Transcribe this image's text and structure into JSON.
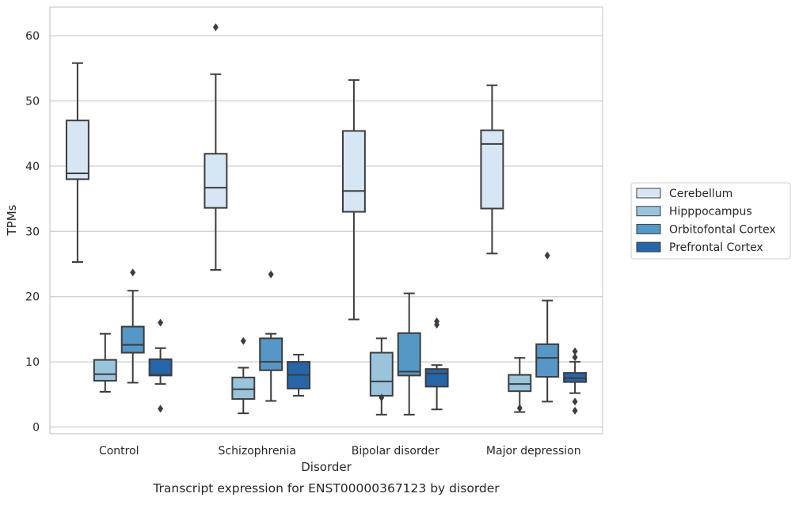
{
  "caption": "Transcript expression for ENST00000367123 by disorder",
  "chart_data": {
    "type": "boxplot",
    "title": "",
    "xlabel": "Disorder",
    "ylabel": "TPMs",
    "ylim": [
      -1,
      64.5
    ],
    "yticks": [
      0,
      10,
      20,
      30,
      40,
      50,
      60
    ],
    "grid": "horizontal",
    "legend_position": "right",
    "categories": [
      "Control",
      "Schizophrenia",
      "Bipolar disorder",
      "Major depression"
    ],
    "series": [
      {
        "name": "Cerebellum",
        "color": "#d7e6f4",
        "boxes": [
          {
            "whislo": 25.3,
            "q1": 38.0,
            "med": 38.9,
            "q3": 47.0,
            "whishi": 55.8,
            "fliers": []
          },
          {
            "whislo": 24.1,
            "q1": 33.6,
            "med": 36.7,
            "q3": 41.9,
            "whishi": 54.1,
            "fliers": [
              61.3
            ]
          },
          {
            "whislo": 16.5,
            "q1": 33.0,
            "med": 36.2,
            "q3": 45.4,
            "whishi": 53.2,
            "fliers": []
          },
          {
            "whislo": 26.6,
            "q1": 33.5,
            "med": 43.4,
            "q3": 45.5,
            "whishi": 52.4,
            "fliers": []
          }
        ]
      },
      {
        "name": "Hipppocampus",
        "color": "#9ac3dc",
        "boxes": [
          {
            "whislo": 5.4,
            "q1": 7.1,
            "med": 8.1,
            "q3": 10.3,
            "whishi": 14.3,
            "fliers": []
          },
          {
            "whislo": 2.1,
            "q1": 4.3,
            "med": 5.8,
            "q3": 7.6,
            "whishi": 9.1,
            "fliers": [
              13.2
            ]
          },
          {
            "whislo": 1.9,
            "q1": 4.8,
            "med": 7.0,
            "q3": 11.4,
            "whishi": 13.6,
            "fliers": [
              4.5
            ]
          },
          {
            "whislo": 2.3,
            "q1": 5.5,
            "med": 6.6,
            "q3": 8.0,
            "whishi": 10.6,
            "fliers": [
              2.9
            ]
          }
        ]
      },
      {
        "name": "Orbitofontal Cortex",
        "color": "#5597c6",
        "boxes": [
          {
            "whislo": 6.8,
            "q1": 11.4,
            "med": 12.6,
            "q3": 15.4,
            "whishi": 20.9,
            "fliers": [
              23.7
            ]
          },
          {
            "whislo": 4.0,
            "q1": 8.7,
            "med": 10.0,
            "q3": 13.6,
            "whishi": 14.3,
            "fliers": [
              23.4
            ]
          },
          {
            "whislo": 1.9,
            "q1": 7.9,
            "med": 8.5,
            "q3": 14.4,
            "whishi": 20.5,
            "fliers": []
          },
          {
            "whislo": 3.9,
            "q1": 7.7,
            "med": 10.6,
            "q3": 12.7,
            "whishi": 19.4,
            "fliers": [
              26.3
            ]
          }
        ]
      },
      {
        "name": "Prefrontal Cortex",
        "color": "#2665a8",
        "boxes": [
          {
            "whislo": 6.6,
            "q1": 7.9,
            "med": 8.0,
            "q3": 10.4,
            "whishi": 12.1,
            "fliers": [
              16.0,
              2.8
            ]
          },
          {
            "whislo": 4.8,
            "q1": 5.9,
            "med": 8.0,
            "q3": 10.0,
            "whishi": 11.1,
            "fliers": []
          },
          {
            "whislo": 2.7,
            "q1": 6.2,
            "med": 8.2,
            "q3": 8.9,
            "whishi": 9.5,
            "fliers": [
              15.7,
              16.2
            ]
          },
          {
            "whislo": 5.2,
            "q1": 6.9,
            "med": 7.5,
            "q3": 8.3,
            "whishi": 10.0,
            "fliers": [
              11.6,
              10.7,
              3.9,
              2.5
            ]
          }
        ]
      }
    ]
  }
}
